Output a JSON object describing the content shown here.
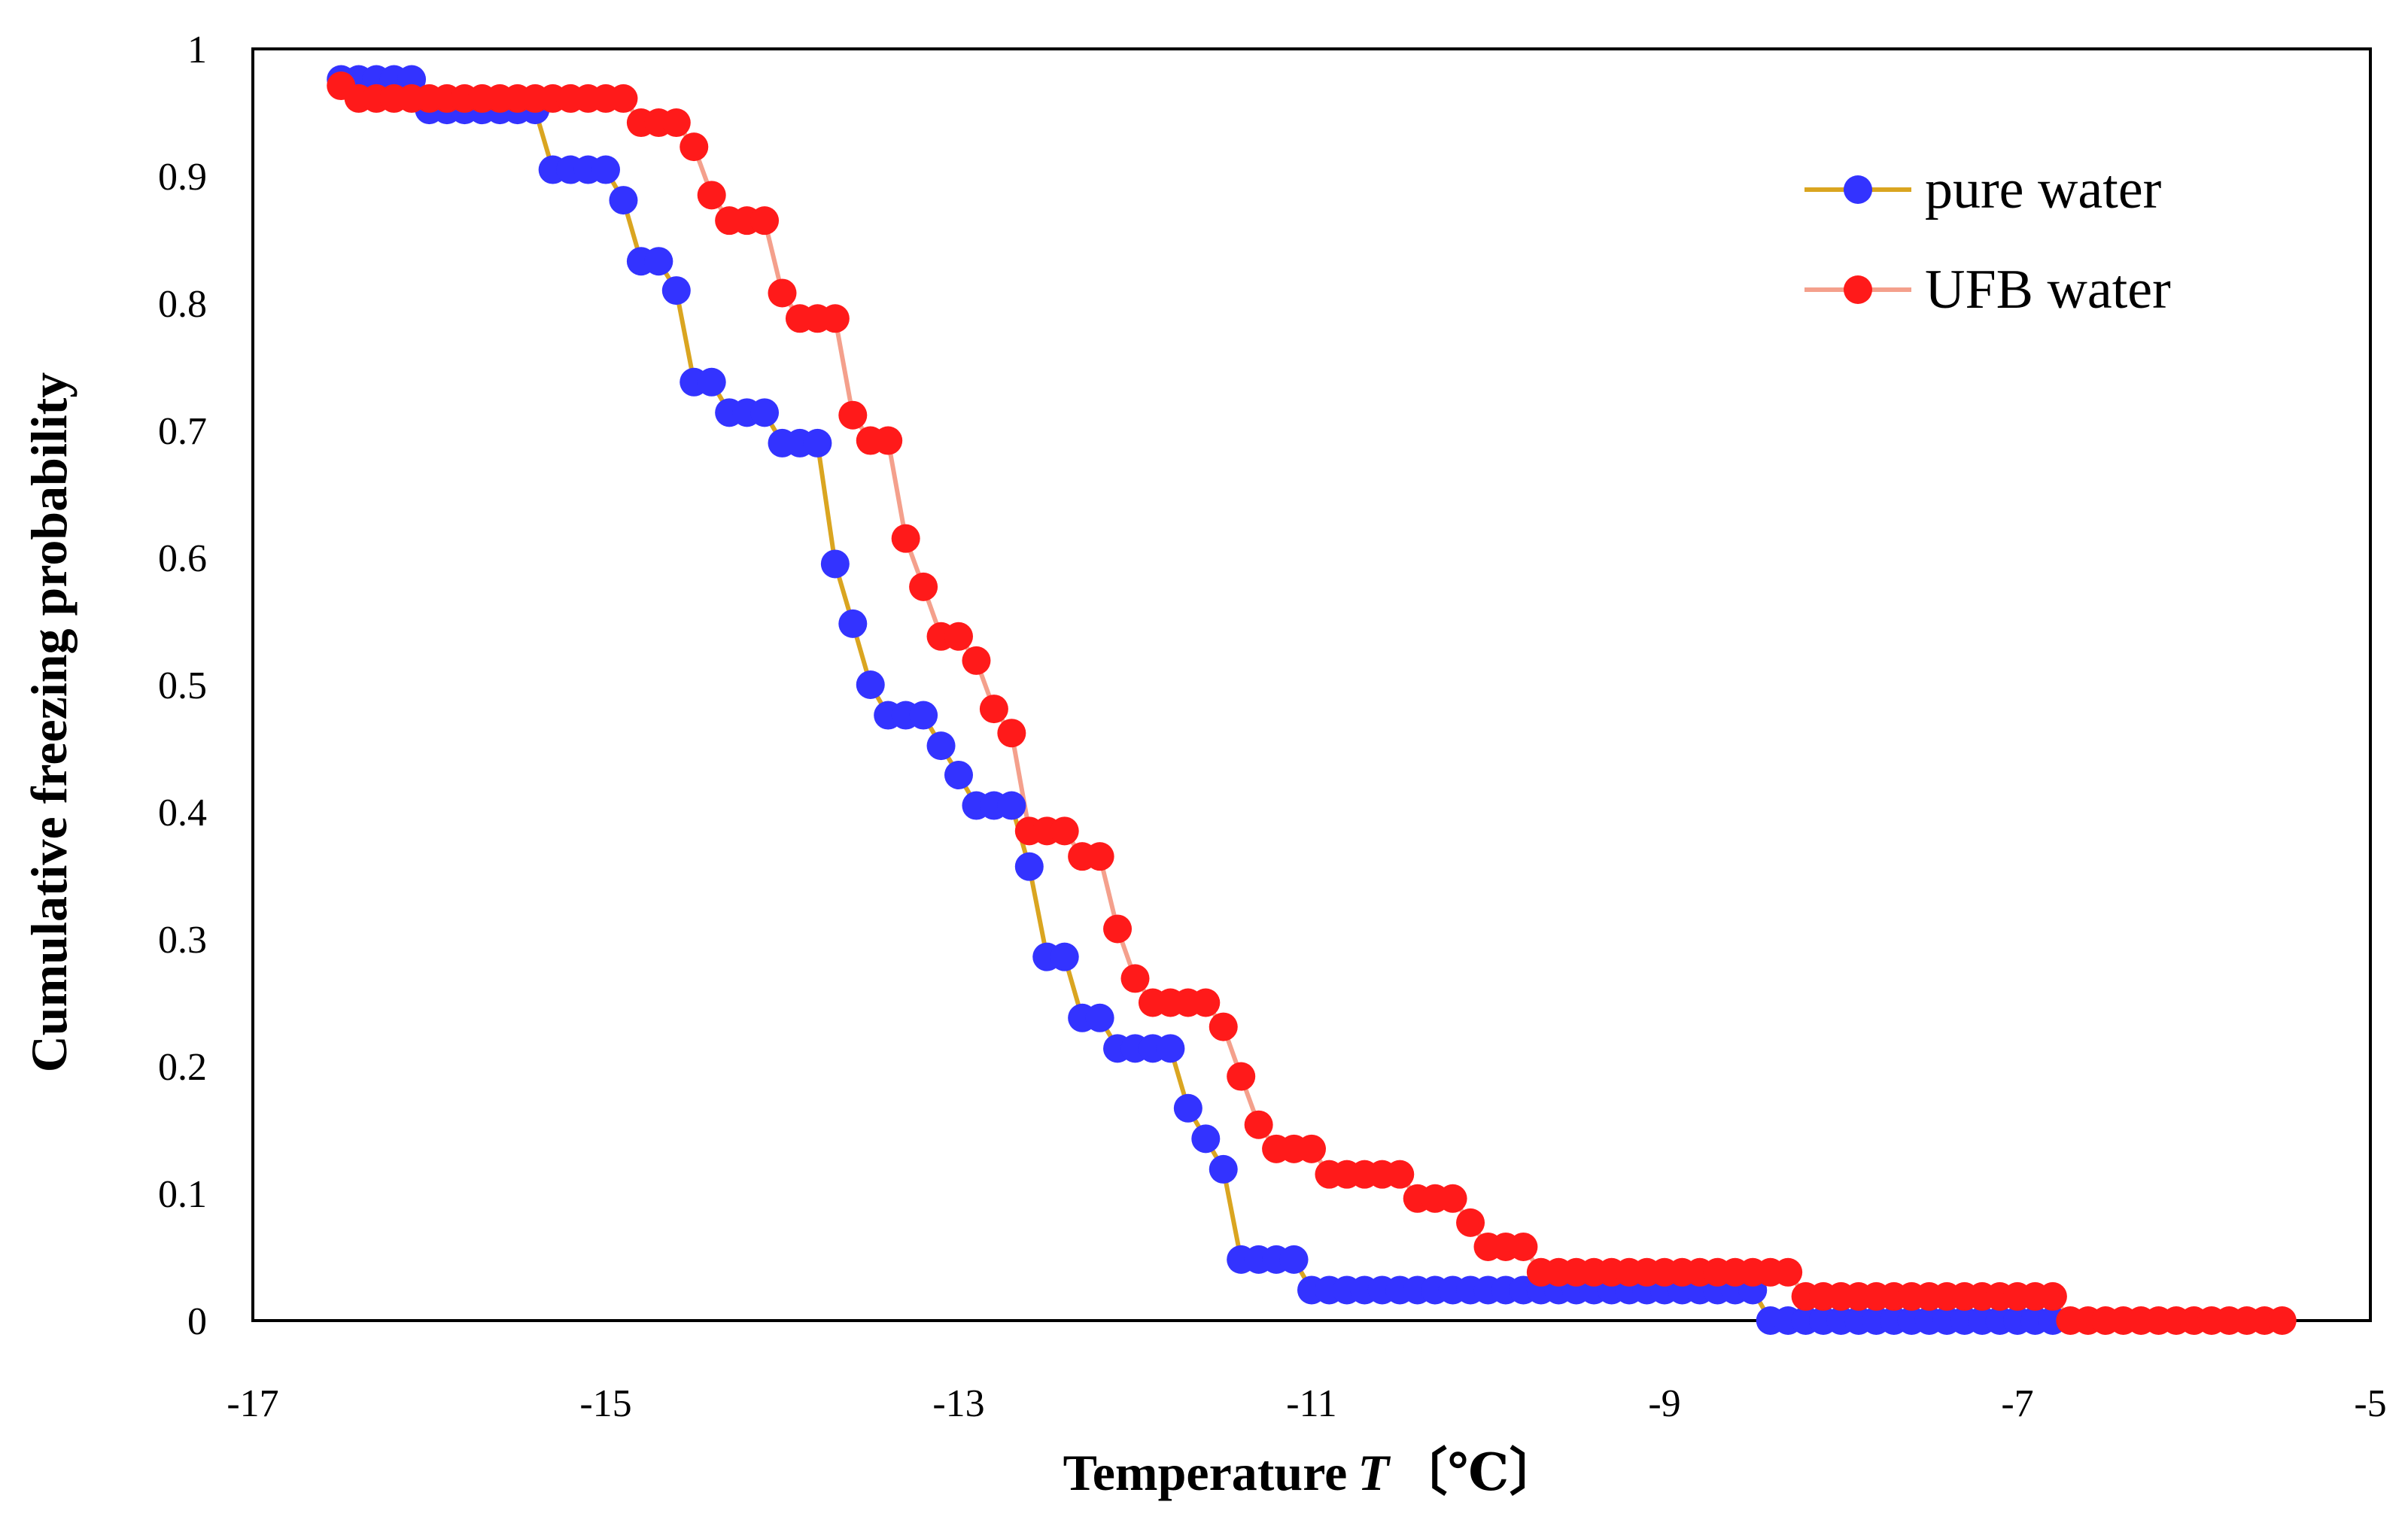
{
  "chart_data": {
    "type": "scatter",
    "title": "",
    "xlabel_main": "Temperature",
    "xlabel_var": "T",
    "xlabel_unit": "〔℃〕",
    "ylabel": "Cumulative freezing probability",
    "xlim": [
      -17,
      -5
    ],
    "ylim": [
      0,
      1
    ],
    "x_ticks": [
      -17,
      -15,
      -13,
      -11,
      -9,
      -7,
      -5
    ],
    "x_tick_labels": [
      "-17",
      "-15",
      "-13",
      "-11",
      "-9",
      "-7",
      "-5"
    ],
    "y_ticks": [
      0,
      0.1,
      0.2,
      0.3,
      0.4,
      0.5,
      0.6,
      0.7,
      0.8,
      0.9,
      1
    ],
    "y_tick_labels": [
      "0",
      "0.1",
      "0.2",
      "0.3",
      "0.4",
      "0.5",
      "0.6",
      "0.7",
      "0.8",
      "0.9",
      "1"
    ],
    "grid": false,
    "legend_position": "top-right",
    "series": [
      {
        "name": "pure water",
        "line_color": "#DAA520",
        "marker_color": "#3333FF",
        "points": [
          [
            -16.5,
            0.976
          ],
          [
            -16.4,
            0.976
          ],
          [
            -16.3,
            0.976
          ],
          [
            -16.2,
            0.976
          ],
          [
            -16.1,
            0.976
          ],
          [
            -16.0,
            0.952
          ],
          [
            -15.9,
            0.952
          ],
          [
            -15.8,
            0.952
          ],
          [
            -15.7,
            0.952
          ],
          [
            -15.6,
            0.952
          ],
          [
            -15.5,
            0.952
          ],
          [
            -15.4,
            0.952
          ],
          [
            -15.3,
            0.905
          ],
          [
            -15.2,
            0.905
          ],
          [
            -15.1,
            0.905
          ],
          [
            -15.0,
            0.905
          ],
          [
            -14.9,
            0.881
          ],
          [
            -14.8,
            0.833
          ],
          [
            -14.7,
            0.833
          ],
          [
            -14.6,
            0.81
          ],
          [
            -14.5,
            0.738
          ],
          [
            -14.4,
            0.738
          ],
          [
            -14.3,
            0.714
          ],
          [
            -14.2,
            0.714
          ],
          [
            -14.1,
            0.714
          ],
          [
            -14.0,
            0.69
          ],
          [
            -13.9,
            0.69
          ],
          [
            -13.8,
            0.69
          ],
          [
            -13.7,
            0.595
          ],
          [
            -13.6,
            0.548
          ],
          [
            -13.5,
            0.5
          ],
          [
            -13.4,
            0.476
          ],
          [
            -13.3,
            0.476
          ],
          [
            -13.2,
            0.476
          ],
          [
            -13.1,
            0.452
          ],
          [
            -13.0,
            0.429
          ],
          [
            -12.9,
            0.405
          ],
          [
            -12.8,
            0.405
          ],
          [
            -12.7,
            0.405
          ],
          [
            -12.6,
            0.357
          ],
          [
            -12.5,
            0.286
          ],
          [
            -12.4,
            0.286
          ],
          [
            -12.3,
            0.238
          ],
          [
            -12.2,
            0.238
          ],
          [
            -12.1,
            0.214
          ],
          [
            -12.0,
            0.214
          ],
          [
            -11.9,
            0.214
          ],
          [
            -11.8,
            0.214
          ],
          [
            -11.7,
            0.167
          ],
          [
            -11.6,
            0.143
          ],
          [
            -11.5,
            0.119
          ],
          [
            -11.4,
            0.048
          ],
          [
            -11.3,
            0.048
          ],
          [
            -11.2,
            0.048
          ],
          [
            -11.1,
            0.048
          ],
          [
            -11.0,
            0.024
          ],
          [
            -10.9,
            0.024
          ],
          [
            -10.8,
            0.024
          ],
          [
            -10.7,
            0.024
          ],
          [
            -10.6,
            0.024
          ],
          [
            -10.5,
            0.024
          ],
          [
            -10.4,
            0.024
          ],
          [
            -10.3,
            0.024
          ],
          [
            -10.2,
            0.024
          ],
          [
            -10.1,
            0.024
          ],
          [
            -10.0,
            0.024
          ],
          [
            -9.9,
            0.024
          ],
          [
            -9.8,
            0.024
          ],
          [
            -9.7,
            0.024
          ],
          [
            -9.6,
            0.024
          ],
          [
            -9.5,
            0.024
          ],
          [
            -9.4,
            0.024
          ],
          [
            -9.3,
            0.024
          ],
          [
            -9.2,
            0.024
          ],
          [
            -9.1,
            0.024
          ],
          [
            -9.0,
            0.024
          ],
          [
            -8.9,
            0.024
          ],
          [
            -8.8,
            0.024
          ],
          [
            -8.7,
            0.024
          ],
          [
            -8.6,
            0.024
          ],
          [
            -8.5,
            0.024
          ],
          [
            -8.4,
            0.0
          ],
          [
            -8.3,
            0.0
          ],
          [
            -8.2,
            0.0
          ],
          [
            -8.1,
            0.0
          ],
          [
            -8.0,
            0.0
          ],
          [
            -7.9,
            0.0
          ],
          [
            -7.8,
            0.0
          ],
          [
            -7.7,
            0.0
          ],
          [
            -7.6,
            0.0
          ],
          [
            -7.5,
            0.0
          ],
          [
            -7.4,
            0.0
          ],
          [
            -7.3,
            0.0
          ],
          [
            -7.2,
            0.0
          ],
          [
            -7.1,
            0.0
          ],
          [
            -7.0,
            0.0
          ],
          [
            -6.9,
            0.0
          ],
          [
            -6.8,
            0.0
          ]
        ]
      },
      {
        "name": "UFB water",
        "line_color": "#F4A08C",
        "marker_color": "#FF1A1A",
        "points": [
          [
            -16.5,
            0.971
          ],
          [
            -16.4,
            0.961
          ],
          [
            -16.3,
            0.961
          ],
          [
            -16.2,
            0.961
          ],
          [
            -16.1,
            0.961
          ],
          [
            -16.0,
            0.961
          ],
          [
            -15.9,
            0.961
          ],
          [
            -15.8,
            0.961
          ],
          [
            -15.7,
            0.961
          ],
          [
            -15.6,
            0.961
          ],
          [
            -15.5,
            0.961
          ],
          [
            -15.4,
            0.961
          ],
          [
            -15.3,
            0.961
          ],
          [
            -15.2,
            0.961
          ],
          [
            -15.1,
            0.961
          ],
          [
            -15.0,
            0.961
          ],
          [
            -14.9,
            0.961
          ],
          [
            -14.8,
            0.942
          ],
          [
            -14.7,
            0.942
          ],
          [
            -14.6,
            0.942
          ],
          [
            -14.5,
            0.923
          ],
          [
            -14.4,
            0.885
          ],
          [
            -14.3,
            0.865
          ],
          [
            -14.2,
            0.865
          ],
          [
            -14.1,
            0.865
          ],
          [
            -14.0,
            0.808
          ],
          [
            -13.9,
            0.788
          ],
          [
            -13.8,
            0.788
          ],
          [
            -13.7,
            0.788
          ],
          [
            -13.6,
            0.712
          ],
          [
            -13.5,
            0.692
          ],
          [
            -13.4,
            0.692
          ],
          [
            -13.3,
            0.615
          ],
          [
            -13.2,
            0.577
          ],
          [
            -13.1,
            0.538
          ],
          [
            -13.0,
            0.538
          ],
          [
            -12.9,
            0.519
          ],
          [
            -12.8,
            0.481
          ],
          [
            -12.7,
            0.462
          ],
          [
            -12.6,
            0.385
          ],
          [
            -12.5,
            0.385
          ],
          [
            -12.4,
            0.385
          ],
          [
            -12.3,
            0.365
          ],
          [
            -12.2,
            0.365
          ],
          [
            -12.1,
            0.308
          ],
          [
            -12.0,
            0.269
          ],
          [
            -11.9,
            0.25
          ],
          [
            -11.8,
            0.25
          ],
          [
            -11.7,
            0.25
          ],
          [
            -11.6,
            0.25
          ],
          [
            -11.5,
            0.231
          ],
          [
            -11.4,
            0.192
          ],
          [
            -11.3,
            0.154
          ],
          [
            -11.2,
            0.135
          ],
          [
            -11.1,
            0.135
          ],
          [
            -11.0,
            0.135
          ],
          [
            -10.9,
            0.115
          ],
          [
            -10.8,
            0.115
          ],
          [
            -10.7,
            0.115
          ],
          [
            -10.6,
            0.115
          ],
          [
            -10.5,
            0.115
          ],
          [
            -10.4,
            0.096
          ],
          [
            -10.3,
            0.096
          ],
          [
            -10.2,
            0.096
          ],
          [
            -10.1,
            0.077
          ],
          [
            -10.0,
            0.058
          ],
          [
            -9.9,
            0.058
          ],
          [
            -9.8,
            0.058
          ],
          [
            -9.7,
            0.038
          ],
          [
            -9.6,
            0.038
          ],
          [
            -9.5,
            0.038
          ],
          [
            -9.4,
            0.038
          ],
          [
            -9.3,
            0.038
          ],
          [
            -9.2,
            0.038
          ],
          [
            -9.1,
            0.038
          ],
          [
            -9.0,
            0.038
          ],
          [
            -8.9,
            0.038
          ],
          [
            -8.8,
            0.038
          ],
          [
            -8.7,
            0.038
          ],
          [
            -8.6,
            0.038
          ],
          [
            -8.5,
            0.038
          ],
          [
            -8.4,
            0.038
          ],
          [
            -8.3,
            0.038
          ],
          [
            -8.2,
            0.019
          ],
          [
            -8.1,
            0.019
          ],
          [
            -8.0,
            0.019
          ],
          [
            -7.9,
            0.019
          ],
          [
            -7.8,
            0.019
          ],
          [
            -7.7,
            0.019
          ],
          [
            -7.6,
            0.019
          ],
          [
            -7.5,
            0.019
          ],
          [
            -7.4,
            0.019
          ],
          [
            -7.3,
            0.019
          ],
          [
            -7.2,
            0.019
          ],
          [
            -7.1,
            0.019
          ],
          [
            -7.0,
            0.019
          ],
          [
            -6.9,
            0.019
          ],
          [
            -6.8,
            0.019
          ],
          [
            -6.7,
            0.0
          ],
          [
            -6.6,
            0.0
          ],
          [
            -6.5,
            0.0
          ],
          [
            -6.4,
            0.0
          ],
          [
            -6.3,
            0.0
          ],
          [
            -6.2,
            0.0
          ],
          [
            -6.1,
            0.0
          ],
          [
            -6.0,
            0.0
          ],
          [
            -5.9,
            0.0
          ],
          [
            -5.8,
            0.0
          ],
          [
            -5.7,
            0.0
          ],
          [
            -5.6,
            0.0
          ],
          [
            -5.5,
            0.0
          ]
        ]
      }
    ]
  }
}
